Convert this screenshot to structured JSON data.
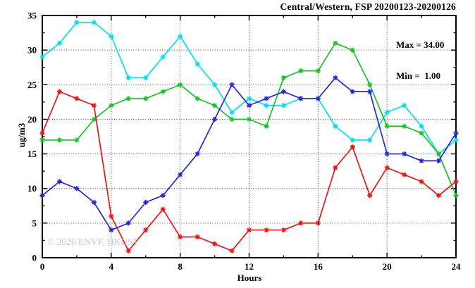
{
  "chart_data": {
    "type": "line",
    "title": "Central/Western, FSP 20200123-20200126",
    "xlabel": "Hours",
    "ylabel": "ug/m3",
    "xlim": [
      0,
      24
    ],
    "ylim": [
      0,
      35
    ],
    "xticks_major": [
      0,
      4,
      8,
      12,
      16,
      20,
      24
    ],
    "xticks_minor": [
      2,
      6,
      10,
      14,
      18,
      22
    ],
    "yticks_major": [
      0,
      5,
      10,
      15,
      20,
      25,
      30,
      35
    ],
    "yticks_minor": [
      2.5,
      7.5,
      12.5,
      17.5,
      22.5,
      27.5,
      32.5
    ],
    "grid": "dotted-at-major-ticks",
    "legend_position": "none",
    "marker": "asterisk",
    "x": [
      0,
      1,
      2,
      3,
      4,
      5,
      6,
      7,
      8,
      9,
      10,
      11,
      12,
      13,
      14,
      15,
      16,
      17,
      18,
      19,
      20,
      21,
      22,
      23,
      24
    ],
    "series": [
      {
        "name": "cyan-series",
        "color": "#00e0e8",
        "values": [
          29,
          31,
          34,
          34,
          32,
          26,
          26,
          29,
          32,
          28,
          25,
          21,
          23,
          22,
          22,
          23,
          23,
          19,
          17,
          17,
          21,
          22,
          19,
          15,
          17
        ]
      },
      {
        "name": "green-series",
        "color": "#17c425",
        "values": [
          17,
          17,
          17,
          20,
          22,
          23,
          23,
          24,
          25,
          23,
          22,
          20,
          20,
          19,
          26,
          27,
          27,
          31,
          30,
          25,
          19,
          19,
          18,
          15,
          9
        ]
      },
      {
        "name": "red-series",
        "color": "#ee1414",
        "values": [
          18,
          24,
          23,
          22,
          6,
          1,
          4,
          7,
          3,
          3,
          2,
          1,
          4,
          4,
          4,
          5,
          5,
          13,
          16,
          9,
          13,
          12,
          11,
          9,
          11
        ]
      },
      {
        "name": "blue-series",
        "color": "#2428dc",
        "values": [
          9,
          11,
          10,
          8,
          4,
          5,
          8,
          9,
          12,
          15,
          20,
          25,
          22,
          23,
          24,
          23,
          23,
          26,
          24,
          24,
          15,
          15,
          14,
          14,
          18
        ]
      }
    ],
    "annotations": {
      "max_label": "Max = 34.00",
      "min_label": "Min =  1.00"
    },
    "watermark": "© 2026 ENVF, HKUST"
  }
}
